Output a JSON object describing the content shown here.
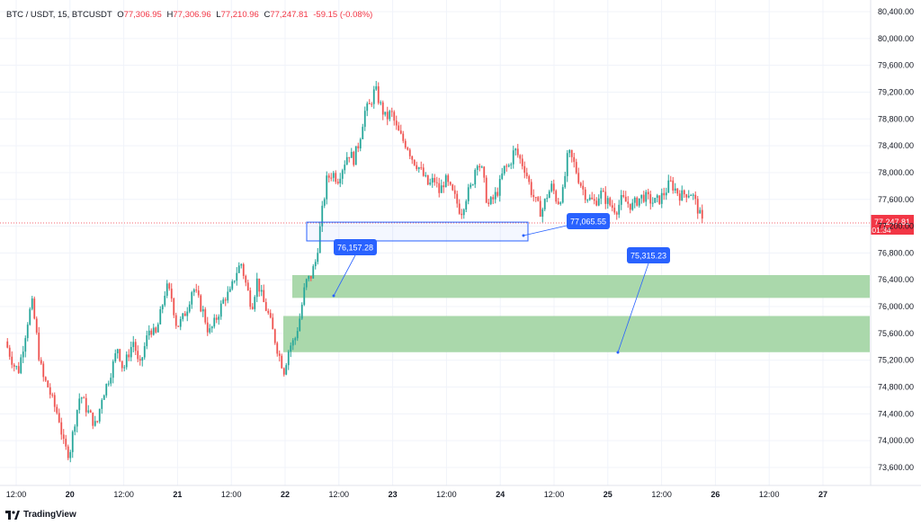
{
  "header": {
    "symbol": "BTC / USDT, 15, BTCUSDT",
    "open_label": "O",
    "open": "77,306.95",
    "high_label": "H",
    "high": "77,306.96",
    "low_label": "L",
    "low": "77,210.96",
    "close_label": "C",
    "close": "77,247.81",
    "change": "-59.15 (-0.08%)"
  },
  "branding": {
    "name": "TradingView"
  },
  "current_price": {
    "value": "77,247.81",
    "countdown": "01:34",
    "level": 77247.81,
    "color": "#f23645"
  },
  "annotations": [
    {
      "label": "76,157.28",
      "price": 76157.28
    },
    {
      "label": "77,065.55",
      "price": 77065.55
    },
    {
      "label": "75,315.23",
      "price": 75315.23
    }
  ],
  "zones": [
    {
      "name": "upper-demand-zone",
      "from": 76130,
      "to": 76470,
      "x_start_label": "22",
      "color": "#a5d6a7"
    },
    {
      "name": "lower-demand-zone",
      "from": 75320,
      "to": 75860,
      "x_start_label": "22",
      "color": "#a5d6a7"
    }
  ],
  "selection_box": {
    "from": 76980,
    "to": 77260,
    "color": "#2962ff"
  },
  "colors": {
    "up": "#26a69a",
    "down": "#ef5350",
    "grid": "#f0f3fa",
    "axis_text": "#131722"
  },
  "chart_data": {
    "type": "candlestick",
    "title": "BTC / USDT, 15, BTCUSDT",
    "y_ticks": [
      "80,400.00",
      "80,000.00",
      "79,600.00",
      "79,200.00",
      "78,800.00",
      "78,400.00",
      "78,000.00",
      "77,600.00",
      "77,200.00",
      "76,800.00",
      "76,400.00",
      "76,000.00",
      "75,600.00",
      "75,200.00",
      "74,800.00",
      "74,400.00",
      "74,000.00",
      "73,600.00"
    ],
    "y_tick_values": [
      80400,
      80000,
      79600,
      79200,
      78800,
      78400,
      78000,
      77600,
      77200,
      76800,
      76400,
      76000,
      75600,
      75200,
      74800,
      74400,
      74000,
      73600
    ],
    "x_ticks": [
      "12:00",
      "20",
      "12:00",
      "21",
      "12:00",
      "22",
      "12:00",
      "23",
      "12:00",
      "24",
      "12:00",
      "25",
      "12:00",
      "26",
      "12:00",
      "27"
    ],
    "ylim": [
      73430,
      80560
    ],
    "grid": true,
    "price_path": [
      [
        0.0,
        75480
      ],
      [
        0.5,
        75300
      ],
      [
        1.0,
        75120
      ],
      [
        1.5,
        75050
      ],
      [
        2.0,
        75400
      ],
      [
        2.6,
        75850
      ],
      [
        3.0,
        76050
      ],
      [
        3.4,
        75700
      ],
      [
        3.8,
        75250
      ],
      [
        4.2,
        74950
      ],
      [
        4.8,
        74800
      ],
      [
        5.4,
        74550
      ],
      [
        6.0,
        74350
      ],
      [
        6.6,
        73900
      ],
      [
        7.2,
        73800
      ],
      [
        7.8,
        74300
      ],
      [
        8.4,
        74700
      ],
      [
        9.0,
        74500
      ],
      [
        9.6,
        74350
      ],
      [
        10.2,
        74200
      ],
      [
        10.8,
        74650
      ],
      [
        11.4,
        74850
      ],
      [
        12.0,
        75100
      ],
      [
        12.6,
        75400
      ],
      [
        13.2,
        75050
      ],
      [
        13.8,
        75300
      ],
      [
        14.4,
        75500
      ],
      [
        15.0,
        75050
      ],
      [
        15.6,
        75400
      ],
      [
        16.2,
        75700
      ],
      [
        16.8,
        75550
      ],
      [
        17.4,
        75900
      ],
      [
        18.0,
        76300
      ],
      [
        18.6,
        76150
      ],
      [
        19.2,
        75700
      ],
      [
        19.8,
        75800
      ],
      [
        20.4,
        76000
      ],
      [
        21.0,
        76300
      ],
      [
        21.6,
        76100
      ],
      [
        22.2,
        75900
      ],
      [
        22.8,
        75600
      ],
      [
        23.4,
        75750
      ],
      [
        24.0,
        75950
      ],
      [
        24.6,
        76150
      ],
      [
        25.2,
        76200
      ],
      [
        25.8,
        76500
      ],
      [
        26.4,
        76650
      ],
      [
        27.0,
        76300
      ],
      [
        27.6,
        76000
      ],
      [
        28.2,
        76400
      ],
      [
        28.8,
        76100
      ],
      [
        29.4,
        75900
      ],
      [
        30.0,
        75600
      ],
      [
        30.6,
        75300
      ],
      [
        31.2,
        75050
      ],
      [
        31.8,
        75400
      ],
      [
        32.4,
        75500
      ],
      [
        33.0,
        75850
      ],
      [
        33.6,
        76350
      ],
      [
        34.2,
        76450
      ],
      [
        34.8,
        76700
      ],
      [
        35.4,
        77350
      ],
      [
        36.0,
        77900
      ],
      [
        36.6,
        78000
      ],
      [
        37.2,
        77900
      ],
      [
        37.8,
        78100
      ],
      [
        38.4,
        78300
      ],
      [
        39.0,
        78200
      ],
      [
        39.6,
        78450
      ],
      [
        40.2,
        78900
      ],
      [
        40.8,
        79000
      ],
      [
        41.4,
        79250
      ],
      [
        42.0,
        79000
      ],
      [
        42.6,
        78800
      ],
      [
        43.2,
        78900
      ],
      [
        43.8,
        78650
      ],
      [
        44.4,
        78500
      ],
      [
        45.0,
        78400
      ],
      [
        45.6,
        78200
      ],
      [
        46.2,
        78100
      ],
      [
        46.8,
        77950
      ],
      [
        47.4,
        77800
      ],
      [
        48.0,
        77900
      ],
      [
        48.6,
        77700
      ],
      [
        49.2,
        77900
      ],
      [
        49.8,
        77750
      ],
      [
        50.4,
        77600
      ],
      [
        51.0,
        77400
      ],
      [
        51.6,
        77650
      ],
      [
        52.2,
        77800
      ],
      [
        52.8,
        78200
      ],
      [
        53.4,
        78000
      ],
      [
        54.0,
        77500
      ],
      [
        54.6,
        77600
      ],
      [
        55.2,
        77750
      ],
      [
        55.8,
        78050
      ],
      [
        56.4,
        78100
      ],
      [
        57.0,
        78350
      ],
      [
        57.6,
        78200
      ],
      [
        58.2,
        78050
      ],
      [
        58.8,
        77750
      ],
      [
        59.4,
        77550
      ],
      [
        60.0,
        77400
      ],
      [
        60.6,
        77650
      ],
      [
        61.2,
        77800
      ],
      [
        61.8,
        77550
      ],
      [
        62.4,
        77700
      ],
      [
        63.0,
        78300
      ],
      [
        63.6,
        78150
      ],
      [
        64.2,
        77900
      ],
      [
        64.8,
        77700
      ],
      [
        65.4,
        77600
      ],
      [
        66.0,
        77550
      ],
      [
        66.6,
        77700
      ],
      [
        67.2,
        77600
      ],
      [
        67.8,
        77500
      ],
      [
        68.4,
        77450
      ],
      [
        69.0,
        77600
      ],
      [
        69.6,
        77550
      ],
      [
        70.2,
        77500
      ],
      [
        70.8,
        77600
      ],
      [
        71.4,
        77650
      ],
      [
        72.0,
        77600
      ],
      [
        72.6,
        77550
      ],
      [
        73.2,
        77600
      ],
      [
        73.8,
        77700
      ],
      [
        74.4,
        77850
      ],
      [
        75.0,
        77750
      ],
      [
        75.6,
        77650
      ],
      [
        76.2,
        77700
      ],
      [
        76.8,
        77700
      ],
      [
        77.4,
        77500
      ],
      [
        78.0,
        77250
      ]
    ],
    "x_range_hours": [
      -12,
      138
    ],
    "plotted_hours": [
      -12,
      66
    ]
  }
}
